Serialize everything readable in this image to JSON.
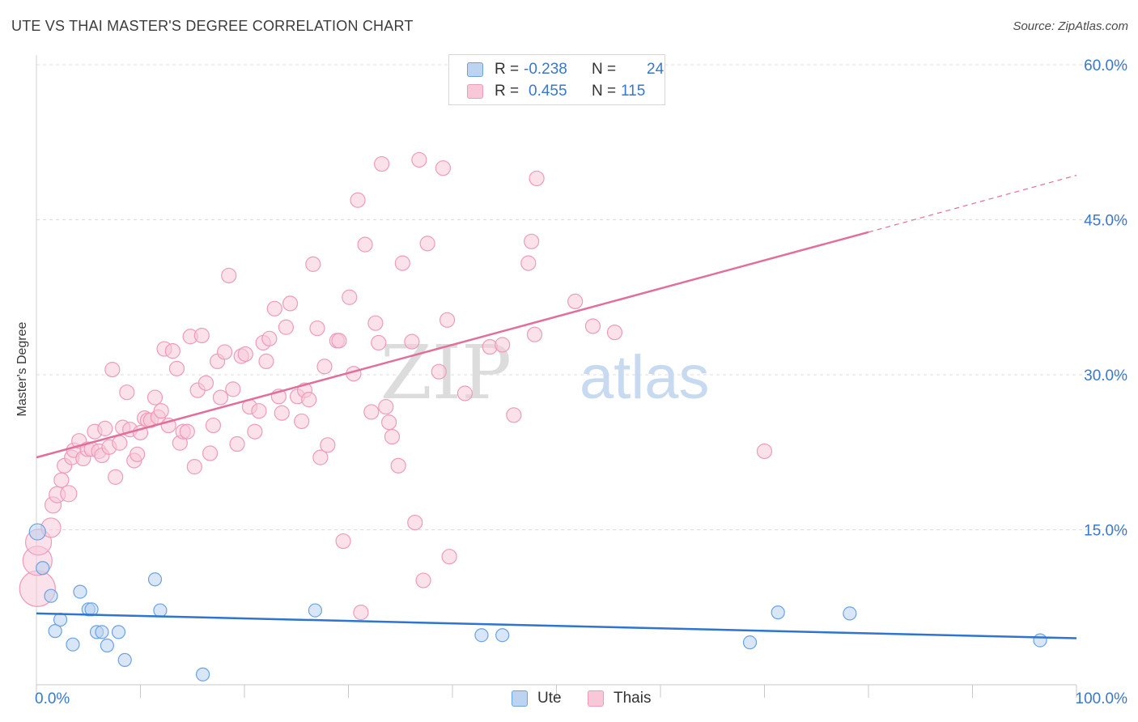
{
  "chart_data": {
    "type": "scatter",
    "title": "UTE VS THAI MASTER'S DEGREE CORRELATION CHART",
    "source": "Source: ZipAtlas.com",
    "xlabel": "",
    "ylabel": "Master's Degree",
    "xlim": [
      0,
      100
    ],
    "ylim": [
      0,
      60
    ],
    "x_tick_labels": {
      "left": "0.0%",
      "right": "100.0%"
    },
    "y_ticks": [
      {
        "value": 15,
        "label": "15.0%"
      },
      {
        "value": 30,
        "label": "30.0%"
      },
      {
        "value": 45,
        "label": "45.0%"
      },
      {
        "value": 60,
        "label": "60.0%"
      }
    ],
    "watermark": {
      "part1": "ZIP",
      "part2": "atlas"
    },
    "legend": [
      {
        "r_label": "R =",
        "r_value": "-0.238",
        "n_label": "N =",
        "n_value": "24"
      },
      {
        "r_label": "R =",
        "r_value": "0.455",
        "n_label": "N =",
        "n_value": "115"
      }
    ],
    "series": [
      {
        "name": "Ute",
        "color": "#6aa3e0",
        "fill": "#b8d2f1",
        "line_color": "#2f74cf",
        "trend": {
          "x1": 0,
          "y1": 6.9,
          "x2": 100,
          "y2": 4.5
        },
        "points": [
          [
            0.1,
            14.8,
            10
          ],
          [
            0.6,
            11.3,
            8
          ],
          [
            1.4,
            8.6,
            8
          ],
          [
            1.8,
            5.2,
            8
          ],
          [
            2.3,
            6.3,
            8
          ],
          [
            3.5,
            3.9,
            8
          ],
          [
            4.2,
            9.0,
            8
          ],
          [
            5.0,
            7.3,
            8
          ],
          [
            5.3,
            7.3,
            8
          ],
          [
            5.8,
            5.1,
            8
          ],
          [
            6.3,
            5.1,
            8
          ],
          [
            6.8,
            3.8,
            8
          ],
          [
            7.9,
            5.1,
            8
          ],
          [
            8.5,
            2.4,
            8
          ],
          [
            11.4,
            10.2,
            8
          ],
          [
            11.9,
            7.2,
            8
          ],
          [
            16.0,
            1.0,
            8
          ],
          [
            26.8,
            7.2,
            8
          ],
          [
            42.8,
            4.8,
            8
          ],
          [
            44.8,
            4.8,
            8
          ],
          [
            68.6,
            4.1,
            8
          ],
          [
            71.3,
            7.0,
            8
          ],
          [
            78.2,
            6.9,
            8
          ],
          [
            96.5,
            4.3,
            8
          ]
        ]
      },
      {
        "name": "Thais",
        "color": "#ef9bb8",
        "fill": "#f8c8d8",
        "line_color": "#e0709a",
        "trend": {
          "x1": 0,
          "y1": 22.0,
          "x2": 80,
          "y2": 43.8
        },
        "trend_dashed": {
          "x1": 80,
          "y1": 43.8,
          "x2": 100,
          "y2": 49.3
        },
        "points": [
          [
            0.1,
            9.3,
            22
          ],
          [
            0.1,
            12.0,
            18
          ],
          [
            0.2,
            13.8,
            16
          ],
          [
            1.4,
            15.2,
            12
          ],
          [
            1.6,
            17.4,
            10
          ],
          [
            2.0,
            18.4,
            10
          ],
          [
            2.4,
            19.8,
            9
          ],
          [
            2.7,
            21.2,
            9
          ],
          [
            3.1,
            18.5,
            10
          ],
          [
            3.4,
            22.0,
            9
          ],
          [
            3.6,
            22.7,
            9
          ],
          [
            4.1,
            23.6,
            9
          ],
          [
            4.5,
            21.9,
            9
          ],
          [
            4.9,
            22.8,
            9
          ],
          [
            5.3,
            22.8,
            9
          ],
          [
            5.6,
            24.5,
            9
          ],
          [
            6.0,
            22.6,
            9
          ],
          [
            6.3,
            22.2,
            9
          ],
          [
            6.6,
            24.8,
            9
          ],
          [
            7.0,
            23.0,
            9
          ],
          [
            7.3,
            30.5,
            9
          ],
          [
            7.6,
            20.1,
            9
          ],
          [
            8.0,
            23.4,
            9
          ],
          [
            8.3,
            24.9,
            9
          ],
          [
            8.7,
            28.3,
            9
          ],
          [
            9.0,
            24.7,
            9
          ],
          [
            9.4,
            21.7,
            9
          ],
          [
            9.7,
            22.3,
            9
          ],
          [
            10.0,
            24.4,
            9
          ],
          [
            10.4,
            25.8,
            9
          ],
          [
            10.7,
            25.6,
            9
          ],
          [
            11.0,
            25.6,
            9
          ],
          [
            11.4,
            27.8,
            9
          ],
          [
            11.7,
            25.9,
            9
          ],
          [
            12.0,
            26.5,
            9
          ],
          [
            12.3,
            32.5,
            9
          ],
          [
            12.7,
            25.1,
            9
          ],
          [
            13.1,
            32.3,
            9
          ],
          [
            13.5,
            30.6,
            9
          ],
          [
            13.8,
            23.4,
            9
          ],
          [
            14.1,
            24.5,
            9
          ],
          [
            14.5,
            24.5,
            9
          ],
          [
            14.8,
            33.7,
            9
          ],
          [
            15.2,
            21.1,
            9
          ],
          [
            15.5,
            28.5,
            9
          ],
          [
            15.9,
            33.8,
            9
          ],
          [
            16.3,
            29.2,
            9
          ],
          [
            16.7,
            22.4,
            9
          ],
          [
            17.0,
            25.1,
            9
          ],
          [
            17.4,
            31.3,
            9
          ],
          [
            17.7,
            27.8,
            9
          ],
          [
            18.1,
            32.2,
            9
          ],
          [
            18.5,
            39.6,
            9
          ],
          [
            18.9,
            28.6,
            9
          ],
          [
            19.3,
            23.3,
            9
          ],
          [
            19.7,
            31.8,
            9
          ],
          [
            20.1,
            32.0,
            9
          ],
          [
            20.5,
            26.9,
            9
          ],
          [
            21.0,
            24.5,
            9
          ],
          [
            21.4,
            26.5,
            9
          ],
          [
            21.8,
            33.1,
            9
          ],
          [
            22.1,
            31.3,
            9
          ],
          [
            22.4,
            33.5,
            9
          ],
          [
            22.9,
            36.4,
            9
          ],
          [
            23.3,
            27.9,
            9
          ],
          [
            23.6,
            26.3,
            9
          ],
          [
            24.0,
            34.6,
            9
          ],
          [
            24.4,
            36.9,
            9
          ],
          [
            25.1,
            27.9,
            9
          ],
          [
            25.5,
            25.5,
            9
          ],
          [
            25.8,
            28.5,
            9
          ],
          [
            26.2,
            27.6,
            9
          ],
          [
            26.6,
            40.7,
            9
          ],
          [
            27.0,
            34.5,
            9
          ],
          [
            27.3,
            22.0,
            9
          ],
          [
            27.7,
            30.8,
            9
          ],
          [
            28.0,
            23.2,
            9
          ],
          [
            28.9,
            33.3,
            9
          ],
          [
            29.1,
            33.3,
            9
          ],
          [
            29.5,
            13.9,
            9
          ],
          [
            30.1,
            37.5,
            9
          ],
          [
            30.5,
            30.1,
            9
          ],
          [
            30.9,
            46.9,
            9
          ],
          [
            31.2,
            7.0,
            9
          ],
          [
            31.6,
            42.6,
            9
          ],
          [
            32.2,
            26.4,
            9
          ],
          [
            32.6,
            35.0,
            9
          ],
          [
            32.9,
            33.1,
            9
          ],
          [
            33.2,
            50.4,
            9
          ],
          [
            33.6,
            26.9,
            9
          ],
          [
            33.9,
            25.4,
            9
          ],
          [
            34.2,
            24.0,
            9
          ],
          [
            34.8,
            21.2,
            9
          ],
          [
            35.2,
            40.8,
            9
          ],
          [
            36.1,
            33.2,
            9
          ],
          [
            36.4,
            15.7,
            9
          ],
          [
            36.8,
            50.8,
            9
          ],
          [
            37.2,
            10.1,
            9
          ],
          [
            37.6,
            42.7,
            9
          ],
          [
            38.7,
            30.3,
            9
          ],
          [
            39.1,
            50.0,
            9
          ],
          [
            39.5,
            35.3,
            9
          ],
          [
            39.7,
            12.4,
            9
          ],
          [
            41.2,
            28.2,
            9
          ],
          [
            43.6,
            32.7,
            9
          ],
          [
            44.8,
            32.9,
            9
          ],
          [
            45.9,
            26.1,
            9
          ],
          [
            47.3,
            40.8,
            9
          ],
          [
            47.6,
            42.9,
            9
          ],
          [
            47.9,
            33.9,
            9
          ],
          [
            48.1,
            49.0,
            9
          ],
          [
            51.8,
            37.1,
            9
          ],
          [
            53.5,
            34.7,
            9
          ],
          [
            55.6,
            34.1,
            9
          ],
          [
            70.0,
            22.6,
            9
          ]
        ]
      }
    ]
  }
}
